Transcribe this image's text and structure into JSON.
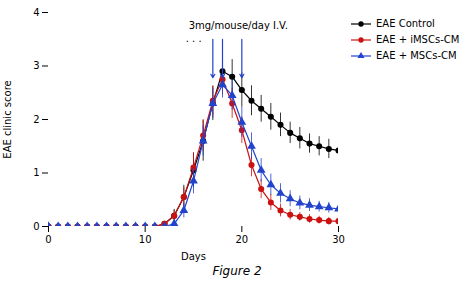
{
  "chart_data": {
    "type": "line",
    "title": "Figure 2",
    "xlabel": "Days",
    "ylabel": "EAE clinic score",
    "xlim": [
      0,
      30
    ],
    "ylim": [
      0,
      4
    ],
    "xticks": [
      0,
      10,
      20,
      30
    ],
    "yticks": [
      0,
      1,
      2,
      3,
      4
    ],
    "legend": "right",
    "x": [
      0,
      1,
      2,
      3,
      4,
      5,
      6,
      7,
      8,
      9,
      10,
      11,
      12,
      13,
      14,
      15,
      16,
      17,
      18,
      19,
      20,
      21,
      22,
      23,
      24,
      25,
      26,
      27,
      28,
      29,
      30
    ],
    "series": [
      {
        "name": "EAE Control",
        "color": "#000000",
        "marker": "circle",
        "values": [
          0,
          0,
          0,
          0,
          0,
          0,
          0,
          0,
          0,
          0,
          0,
          0,
          0.05,
          0.2,
          0.55,
          1.05,
          1.6,
          2.3,
          2.9,
          2.8,
          2.55,
          2.35,
          2.2,
          2.05,
          1.9,
          1.75,
          1.65,
          1.55,
          1.5,
          1.45,
          1.42
        ],
        "errors": [
          0,
          0,
          0,
          0,
          0,
          0,
          0,
          0,
          0,
          0,
          0,
          0,
          0,
          0.12,
          0.22,
          0.32,
          0.38,
          0.32,
          0.28,
          0.32,
          0.32,
          0.28,
          0.25,
          0.25,
          0.22,
          0.2,
          0.2,
          0.18,
          0.18,
          0.18,
          0.2
        ]
      },
      {
        "name": "EAE + iMSCs-CM",
        "color": "#cc1111",
        "marker": "circle",
        "values": [
          0,
          0,
          0,
          0,
          0,
          0,
          0,
          0,
          0,
          0,
          0,
          0,
          0.05,
          0.2,
          0.55,
          1.1,
          1.7,
          2.35,
          2.75,
          2.3,
          1.8,
          1.15,
          0.7,
          0.45,
          0.3,
          0.22,
          0.18,
          0.14,
          0.12,
          0.1,
          0.1
        ],
        "errors": [
          0,
          0,
          0,
          0,
          0,
          0,
          0,
          0,
          0,
          0,
          0,
          0,
          0,
          0.1,
          0.18,
          0.28,
          0.3,
          0.28,
          0.28,
          0.28,
          0.25,
          0.22,
          0.18,
          0.15,
          0.12,
          0.1,
          0.08,
          0.08,
          0.07,
          0.07,
          0.07
        ]
      },
      {
        "name": "EAE + MSCs-CM",
        "color": "#2244cc",
        "marker": "triangle",
        "values": [
          0,
          0,
          0,
          0,
          0,
          0,
          0,
          0,
          0,
          0,
          0,
          0,
          0,
          0.05,
          0.3,
          0.85,
          1.6,
          2.3,
          2.65,
          2.45,
          1.95,
          1.5,
          1.05,
          0.78,
          0.62,
          0.52,
          0.44,
          0.4,
          0.37,
          0.35,
          0.33
        ],
        "errors": [
          0,
          0,
          0,
          0,
          0,
          0,
          0,
          0,
          0,
          0,
          0,
          0,
          0,
          0.05,
          0.14,
          0.24,
          0.28,
          0.28,
          0.25,
          0.28,
          0.28,
          0.25,
          0.22,
          0.2,
          0.18,
          0.15,
          0.13,
          0.12,
          0.1,
          0.1,
          0.1
        ]
      }
    ],
    "annotations": [
      {
        "text": "3mg/mouse/day I.V.",
        "x": 14.5,
        "y": 3.82
      },
      {
        "text": ". . .",
        "x": 14.2,
        "y": 3.58
      }
    ],
    "arrows": {
      "x": [
        17,
        18,
        20
      ],
      "from": 3.5,
      "to": 2.78,
      "color": "#2244cc"
    }
  }
}
